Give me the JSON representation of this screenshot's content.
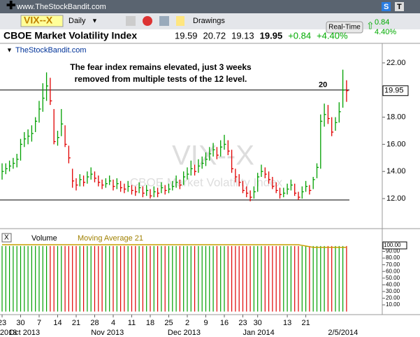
{
  "header": {
    "site": "www.TheStockBandit.com",
    "symbol": "VIX--X",
    "period": "Daily",
    "drawings": "Drawings",
    "s_button": "S",
    "t_button": "T",
    "realtime": "Real-Time",
    "change": "0.84",
    "change_pct": "4.40%"
  },
  "chart_data": {
    "type": "hlc",
    "title": "CBOE Market Volatility Index",
    "open": "19.59",
    "high": "20.72",
    "low": "19.13",
    "close": "19.95",
    "net_change": "+0.84",
    "pct_change": "+4.40%",
    "source": "TheStockBandit.com",
    "annotation": [
      "The fear index remains elevated, just 3 weeks",
      "removed from multiple tests of the 12 level."
    ],
    "watermark": "VIX--X",
    "watermark_name": "CBOE Market Volatility Index",
    "last_value_label": "19.95",
    "ylim": [
      9.89,
      23.44
    ],
    "yticks": [
      {
        "value": 12,
        "label": "12.00"
      },
      {
        "value": 14,
        "label": "14.00"
      },
      {
        "value": 16,
        "label": "16.00"
      },
      {
        "value": 18,
        "label": "18.00"
      },
      {
        "value": 22,
        "label": "22.00"
      }
    ],
    "hlines": [
      {
        "value": 20,
        "label": "20"
      },
      {
        "value": 11.9
      }
    ],
    "bars": [
      [
        14.6,
        13.4,
        14.0
      ],
      [
        14.6,
        13.8,
        14.2
      ],
      [
        14.8,
        14.0,
        14.4
      ],
      [
        15.0,
        14.2,
        14.6
      ],
      [
        15.3,
        14.3,
        14.9
      ],
      [
        16.4,
        14.8,
        16.0
      ],
      [
        16.9,
        15.8,
        16.4
      ],
      [
        17.1,
        16.0,
        16.6
      ],
      [
        17.4,
        16.2,
        16.8
      ],
      [
        18.0,
        16.9,
        17.7
      ],
      [
        19.2,
        17.6,
        18.6
      ],
      [
        20.5,
        18.4,
        19.4
      ],
      [
        21.3,
        19.2,
        20.3
      ],
      [
        20.9,
        18.9,
        19.2
      ],
      [
        18.6,
        16.0,
        16.2
      ],
      [
        17.0,
        15.9,
        16.5
      ],
      [
        18.6,
        16.6,
        17.5
      ],
      [
        17.4,
        15.8,
        16.0
      ],
      [
        15.9,
        14.6,
        15.0
      ],
      [
        14.2,
        12.8,
        13.3
      ],
      [
        13.5,
        12.6,
        13.0
      ],
      [
        13.8,
        12.9,
        13.4
      ],
      [
        13.7,
        12.9,
        13.2
      ],
      [
        14.0,
        13.1,
        13.6
      ],
      [
        14.3,
        13.4,
        13.8
      ],
      [
        14.0,
        13.2,
        13.5
      ],
      [
        13.7,
        12.9,
        13.2
      ],
      [
        13.4,
        12.7,
        13.0
      ],
      [
        13.5,
        12.8,
        13.1
      ],
      [
        13.7,
        13.0,
        13.3
      ],
      [
        13.4,
        12.6,
        12.9
      ],
      [
        13.5,
        12.7,
        13.1
      ],
      [
        13.3,
        12.5,
        12.8
      ],
      [
        13.1,
        12.4,
        12.7
      ],
      [
        13.3,
        12.5,
        12.9
      ],
      [
        13.0,
        12.3,
        12.6
      ],
      [
        12.9,
        12.2,
        12.5
      ],
      [
        13.2,
        12.4,
        12.8
      ],
      [
        12.9,
        12.1,
        12.4
      ],
      [
        13.0,
        12.2,
        12.6
      ],
      [
        12.7,
        12.0,
        12.2
      ],
      [
        12.9,
        12.1,
        12.5
      ],
      [
        12.8,
        12.1,
        12.4
      ],
      [
        13.2,
        12.4,
        12.8
      ],
      [
        13.0,
        12.3,
        12.6
      ],
      [
        13.1,
        12.4,
        12.7
      ],
      [
        13.3,
        12.6,
        12.9
      ],
      [
        13.7,
        12.8,
        13.2
      ],
      [
        13.4,
        12.7,
        13.0
      ],
      [
        14.0,
        13.0,
        13.6
      ],
      [
        14.3,
        13.4,
        13.8
      ],
      [
        14.8,
        13.7,
        14.2
      ],
      [
        14.5,
        13.7,
        14.0
      ],
      [
        14.9,
        13.9,
        14.4
      ],
      [
        15.1,
        14.2,
        14.6
      ],
      [
        15.4,
        14.4,
        14.9
      ],
      [
        15.8,
        14.8,
        15.3
      ],
      [
        16.1,
        15.1,
        15.6
      ],
      [
        15.8,
        14.9,
        15.2
      ],
      [
        16.3,
        15.1,
        15.8
      ],
      [
        16.7,
        15.6,
        16.0
      ],
      [
        16.3,
        15.2,
        15.5
      ],
      [
        15.6,
        13.9,
        14.2
      ],
      [
        14.2,
        13.2,
        13.6
      ],
      [
        13.8,
        12.9,
        13.2
      ],
      [
        13.3,
        12.4,
        12.6
      ],
      [
        12.9,
        12.1,
        12.4
      ],
      [
        12.6,
        11.8,
        12.1
      ],
      [
        12.9,
        12.0,
        12.5
      ],
      [
        13.9,
        12.5,
        13.6
      ],
      [
        14.5,
        13.6,
        14.0
      ],
      [
        14.3,
        13.5,
        13.8
      ],
      [
        14.0,
        13.1,
        13.4
      ],
      [
        13.6,
        12.7,
        12.9
      ],
      [
        13.2,
        12.4,
        12.6
      ],
      [
        12.8,
        12.0,
        12.3
      ],
      [
        12.8,
        12.1,
        12.4
      ],
      [
        13.1,
        12.3,
        12.7
      ],
      [
        13.4,
        12.6,
        13.0
      ],
      [
        13.1,
        12.2,
        12.4
      ],
      [
        12.5,
        11.9,
        12.1
      ],
      [
        12.9,
        12.0,
        12.5
      ],
      [
        13.3,
        12.5,
        12.9
      ],
      [
        13.0,
        12.3,
        12.6
      ],
      [
        13.6,
        12.7,
        13.4
      ],
      [
        14.6,
        13.5,
        14.3
      ],
      [
        18.2,
        14.2,
        17.7
      ],
      [
        19.0,
        17.3,
        18.2
      ],
      [
        18.9,
        17.5,
        17.9
      ],
      [
        18.0,
        16.6,
        16.9
      ],
      [
        18.0,
        17.0,
        17.6
      ],
      [
        19.1,
        17.6,
        18.4
      ],
      [
        21.5,
        18.7,
        20.0
      ],
      [
        20.72,
        19.13,
        19.95
      ]
    ],
    "up_color": "#00a000",
    "down_color": "#e00000",
    "volume_panel": {
      "label": "Volume",
      "ma_label": "Moving Average 21",
      "ma_color": "#c8a000",
      "top_label": "100.00",
      "ylim": [
        -4.6,
        105.2
      ],
      "yticks": [
        {
          "value": 10,
          "label": "10.00"
        },
        {
          "value": 20,
          "label": "20.00"
        },
        {
          "value": 30,
          "label": "30.00"
        },
        {
          "value": 40,
          "label": "40.00"
        },
        {
          "value": 50,
          "label": "50.00"
        },
        {
          "value": 60,
          "label": "60.00"
        },
        {
          "value": 70,
          "label": "70.00"
        },
        {
          "value": 80,
          "label": "80.00"
        },
        {
          "value": 90,
          "label": "90.00"
        }
      ],
      "values": [
        98,
        98,
        98,
        98,
        98,
        98,
        98,
        98,
        98,
        98,
        98,
        98,
        98,
        98,
        98,
        98,
        98,
        98,
        98,
        98,
        98,
        98,
        98,
        98,
        98,
        98,
        98,
        98,
        98,
        98,
        98,
        98,
        98,
        98,
        98,
        98,
        98,
        98,
        98,
        98,
        98,
        98,
        98,
        98,
        98,
        98,
        98,
        98,
        98,
        98,
        98,
        98,
        98,
        98,
        98,
        98,
        98,
        98,
        98,
        98,
        98,
        98,
        98,
        98,
        98,
        98,
        98,
        98,
        98,
        98,
        98,
        98,
        98,
        98,
        98,
        98,
        98,
        98,
        98,
        98,
        98,
        98,
        98,
        98,
        98,
        98,
        98,
        98,
        98,
        98,
        98,
        98,
        98,
        98
      ],
      "ma": [
        100,
        100,
        100,
        100,
        100,
        100,
        100,
        100,
        100,
        100,
        100,
        100,
        100,
        100,
        100,
        100,
        100,
        100,
        100,
        100,
        100,
        100,
        100,
        100,
        100,
        100,
        100,
        100,
        100,
        100,
        100,
        100,
        100,
        100,
        100,
        100,
        100,
        100,
        100,
        100,
        100,
        100,
        100,
        100,
        100,
        100,
        100,
        100,
        100,
        100,
        100,
        100,
        100,
        100,
        100,
        100,
        100,
        100,
        100,
        100,
        100,
        100,
        100,
        100,
        100,
        100,
        100,
        100,
        100,
        100,
        100,
        100,
        100,
        100,
        100,
        100,
        100,
        100,
        100,
        100,
        100,
        99,
        98,
        97,
        96,
        96,
        96,
        96,
        96,
        96,
        96,
        96,
        96,
        96
      ]
    },
    "xticks": [
      {
        "value": 0,
        "label": "23"
      },
      {
        "value": 5,
        "label": "30"
      },
      {
        "value": 10,
        "label": "7"
      },
      {
        "value": 15,
        "label": "14"
      },
      {
        "value": 20,
        "label": "21"
      },
      {
        "value": 25,
        "label": "28"
      },
      {
        "value": 30,
        "label": "4"
      },
      {
        "value": 35,
        "label": "11"
      },
      {
        "value": 40,
        "label": "18"
      },
      {
        "value": 45,
        "label": "25"
      },
      {
        "value": 50,
        "label": "2"
      },
      {
        "value": 55,
        "label": "9"
      },
      {
        "value": 60,
        "label": "16"
      },
      {
        "value": 65,
        "label": "23"
      },
      {
        "value": 69,
        "label": "30"
      },
      {
        "value": 77,
        "label": "13"
      },
      {
        "value": 82,
        "label": "21"
      }
    ],
    "month_labels": [
      {
        "value": -0.6,
        "label": "2013"
      },
      {
        "value": 1.8,
        "label": "Oct 2013"
      },
      {
        "value": 24,
        "label": "Nov 2013"
      },
      {
        "value": 44.7,
        "label": "Dec 2013"
      },
      {
        "value": 65,
        "label": "Jan 2014"
      },
      {
        "value": 88,
        "label": "2/5/2014"
      }
    ]
  }
}
